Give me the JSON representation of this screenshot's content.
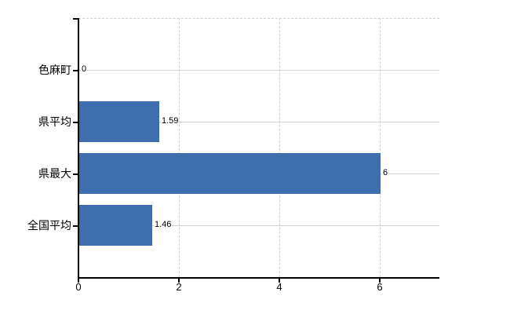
{
  "chart_data": {
    "type": "bar",
    "orientation": "horizontal",
    "categories": [
      "色麻町",
      "県平均",
      "県最大",
      "全国平均"
    ],
    "values": [
      0,
      1.59,
      6,
      1.46
    ],
    "value_labels": [
      "0",
      "1.59",
      "6",
      "1.46"
    ],
    "series": [
      {
        "name": "",
        "values": [
          0,
          1.59,
          6,
          1.46
        ]
      }
    ],
    "xticks": [
      0,
      2,
      4,
      6
    ],
    "xtick_labels": [
      "0",
      "2",
      "4",
      "6"
    ],
    "xlim": [
      0,
      7.1875
    ],
    "grid": true,
    "legend_position": "none",
    "colors": {
      "bar": "#3f6eae",
      "axis": "#000000",
      "grid_horizontal": "#cdd7cd",
      "grid_vertical": "#d5ccd3",
      "text": "#000000",
      "background": "#ffffff"
    }
  }
}
